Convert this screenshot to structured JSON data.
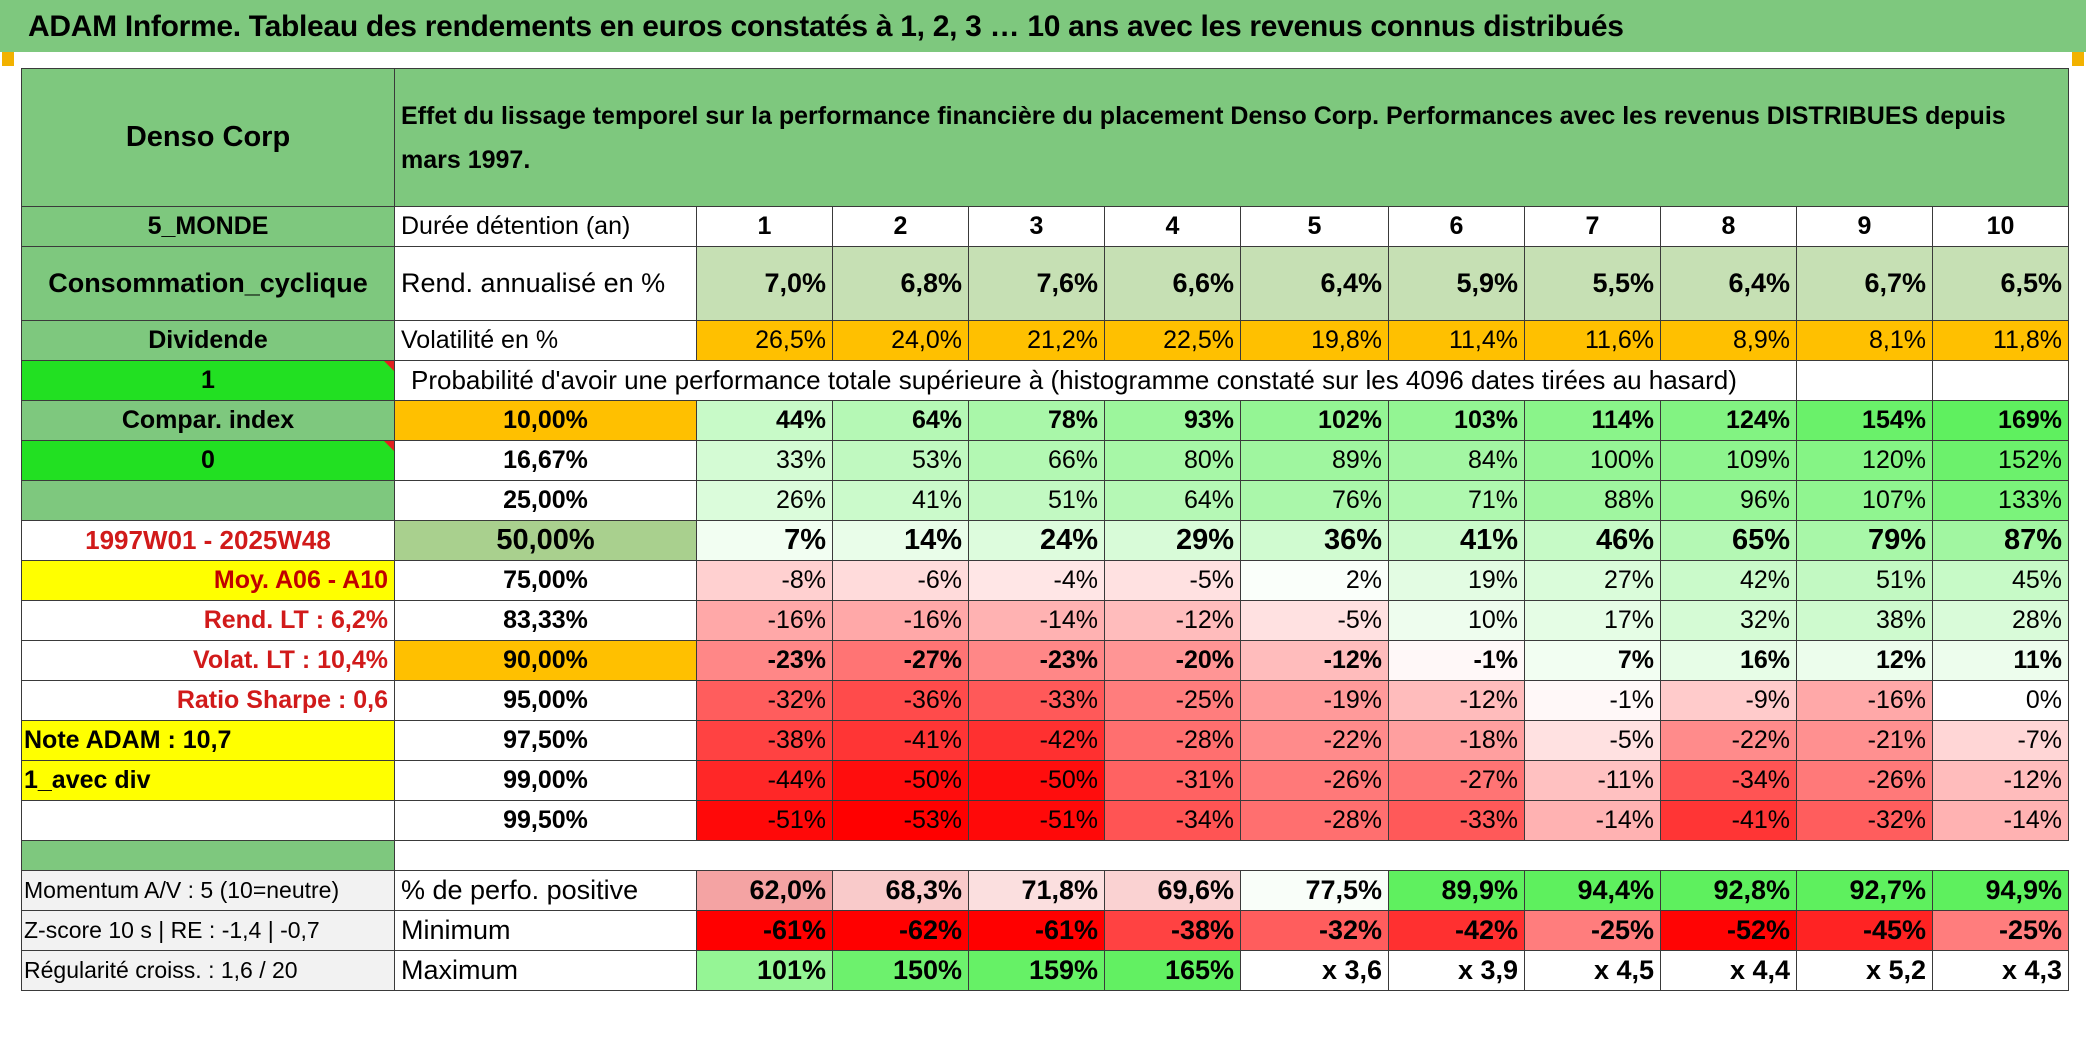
{
  "title": "ADAM Informe. Tableau des rendements en euros constatés à 1, 2, 3 … 10 ans avec les revenus connus distribués",
  "header": {
    "company": "Denso Corp",
    "description": "Effet du lissage temporel sur la performance financière du placement Denso Corp. Performances avec les revenus DISTRIBUES depuis mars 1997."
  },
  "side": {
    "region": "5_MONDE",
    "sector": "Consommation_cyclique",
    "dividend_label": "Dividende",
    "flag1": "1",
    "compar_index": "Compar. index",
    "flag0": "0",
    "period": "1997W01 - 2025W48",
    "moy": "Moy. A06 - A10",
    "rend_lt": "Rend. LT :   6,2%",
    "volat_lt": "Volat. LT :   10,4%",
    "sharpe": "Ratio Sharpe :    0,6",
    "note": "Note ADAM : 10,7",
    "avec_div": "1_avec div",
    "momentum": "Momentum A/V : 5 (10=neutre)",
    "zscore": "Z-score 10 s | RE : -1,4 | -0,7",
    "regularite": "Régularité croiss. : 1,6 / 20"
  },
  "labels": {
    "duree": "Durée détention (an)",
    "rend": "Rend. annualisé en %",
    "volat": "Volatilité en %",
    "proba": "Probabilité d'avoir une performance totale supérieure à (histogramme constaté sur les 4096 dates tirées au hasard)",
    "pct_pos": "% de perfo. positive",
    "minimum": "Minimum",
    "maximum": "Maximum"
  },
  "years": [
    "1",
    "2",
    "3",
    "4",
    "5",
    "6",
    "7",
    "8",
    "9",
    "10"
  ],
  "rend": [
    "7,0%",
    "6,8%",
    "7,6%",
    "6,6%",
    "6,4%",
    "5,9%",
    "5,5%",
    "6,4%",
    "6,7%",
    "6,5%"
  ],
  "volat": [
    "26,5%",
    "24,0%",
    "21,2%",
    "22,5%",
    "19,8%",
    "11,4%",
    "11,6%",
    "8,9%",
    "8,1%",
    "11,8%"
  ],
  "proba_rows": [
    {
      "q": "10,00%",
      "vals": [
        "44%",
        "64%",
        "78%",
        "93%",
        "102%",
        "103%",
        "114%",
        "124%",
        "154%",
        "169%"
      ]
    },
    {
      "q": "16,67%",
      "vals": [
        "33%",
        "53%",
        "66%",
        "80%",
        "89%",
        "84%",
        "100%",
        "109%",
        "120%",
        "152%"
      ]
    },
    {
      "q": "25,00%",
      "vals": [
        "26%",
        "41%",
        "51%",
        "64%",
        "76%",
        "71%",
        "88%",
        "96%",
        "107%",
        "133%"
      ]
    },
    {
      "q": "50,00%",
      "vals": [
        "7%",
        "14%",
        "24%",
        "29%",
        "36%",
        "41%",
        "46%",
        "65%",
        "79%",
        "87%"
      ]
    },
    {
      "q": "75,00%",
      "vals": [
        "-8%",
        "-6%",
        "-4%",
        "-5%",
        "2%",
        "19%",
        "27%",
        "42%",
        "51%",
        "45%"
      ]
    },
    {
      "q": "83,33%",
      "vals": [
        "-16%",
        "-16%",
        "-14%",
        "-12%",
        "-5%",
        "10%",
        "17%",
        "32%",
        "38%",
        "28%"
      ]
    },
    {
      "q": "90,00%",
      "vals": [
        "-23%",
        "-27%",
        "-23%",
        "-20%",
        "-12%",
        "-1%",
        "7%",
        "16%",
        "12%",
        "11%"
      ]
    },
    {
      "q": "95,00%",
      "vals": [
        "-32%",
        "-36%",
        "-33%",
        "-25%",
        "-19%",
        "-12%",
        "-1%",
        "-9%",
        "-16%",
        "0%"
      ]
    },
    {
      "q": "97,50%",
      "vals": [
        "-38%",
        "-41%",
        "-42%",
        "-28%",
        "-22%",
        "-18%",
        "-5%",
        "-22%",
        "-21%",
        "-7%"
      ]
    },
    {
      "q": "99,00%",
      "vals": [
        "-44%",
        "-50%",
        "-50%",
        "-31%",
        "-26%",
        "-27%",
        "-11%",
        "-34%",
        "-26%",
        "-12%"
      ]
    },
    {
      "q": "99,50%",
      "vals": [
        "-51%",
        "-53%",
        "-51%",
        "-34%",
        "-28%",
        "-33%",
        "-14%",
        "-41%",
        "-32%",
        "-14%"
      ]
    }
  ],
  "pct_pos": [
    "62,0%",
    "68,3%",
    "71,8%",
    "69,6%",
    "77,5%",
    "89,9%",
    "94,4%",
    "92,8%",
    "92,7%",
    "94,9%"
  ],
  "minimum": [
    "-61%",
    "-62%",
    "-61%",
    "-38%",
    "-32%",
    "-42%",
    "-25%",
    "-52%",
    "-45%",
    "-25%"
  ],
  "maximum": [
    "101%",
    "150%",
    "159%",
    "165%",
    "x 3,6",
    "x 3,9",
    "x 4,5",
    "x 4,4",
    "x 5,2",
    "x 4,3"
  ],
  "colors": {
    "header_green": "#7ec87e",
    "bright_green": "#22e022",
    "orange": "#ffc000",
    "yellow": "#ffff00",
    "rend_green": "#c6e0b4",
    "mid_green": "#a9d08e",
    "label_red": "#d11a1a"
  }
}
